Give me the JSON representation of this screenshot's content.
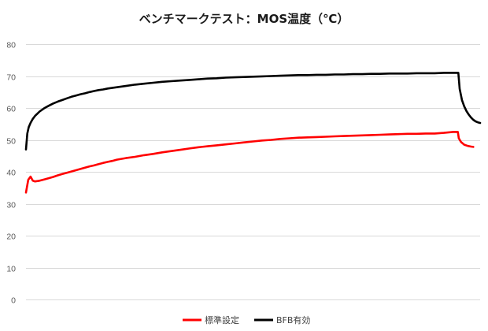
{
  "chart_data": {
    "type": "line",
    "title": "ベンチマークテスト：MOS温度（℃）",
    "xlabel": "",
    "ylabel": "",
    "ylim": [
      0,
      80
    ],
    "yticks": [
      "0",
      "10",
      "20",
      "30",
      "40",
      "50",
      "60",
      "70",
      "80"
    ],
    "grid": true,
    "legend_position": "bottom",
    "x_max": 100,
    "series": [
      {
        "name": "標準設定",
        "color": "#ff0000",
        "points": [
          [
            0,
            33.5
          ],
          [
            0.5,
            37.5
          ],
          [
            1,
            38.5
          ],
          [
            1.5,
            37.2
          ],
          [
            2,
            37
          ],
          [
            3,
            37.2
          ],
          [
            4,
            37.6
          ],
          [
            5,
            38
          ],
          [
            6,
            38.4
          ],
          [
            7,
            38.9
          ],
          [
            8,
            39.3
          ],
          [
            9,
            39.7
          ],
          [
            10,
            40.1
          ],
          [
            11,
            40.5
          ],
          [
            12,
            40.9
          ],
          [
            13,
            41.3
          ],
          [
            14,
            41.7
          ],
          [
            15,
            42
          ],
          [
            16,
            42.4
          ],
          [
            17,
            42.8
          ],
          [
            18,
            43.1
          ],
          [
            19,
            43.4
          ],
          [
            20,
            43.8
          ],
          [
            22,
            44.3
          ],
          [
            24,
            44.7
          ],
          [
            26,
            45.2
          ],
          [
            28,
            45.6
          ],
          [
            30,
            46.1
          ],
          [
            32,
            46.5
          ],
          [
            34,
            46.9
          ],
          [
            36,
            47.3
          ],
          [
            38,
            47.7
          ],
          [
            40,
            48
          ],
          [
            42,
            48.3
          ],
          [
            44,
            48.6
          ],
          [
            46,
            48.9
          ],
          [
            48,
            49.2
          ],
          [
            50,
            49.5
          ],
          [
            52,
            49.8
          ],
          [
            54,
            50
          ],
          [
            56,
            50.3
          ],
          [
            58,
            50.5
          ],
          [
            60,
            50.7
          ],
          [
            62,
            50.8
          ],
          [
            64,
            50.9
          ],
          [
            66,
            51
          ],
          [
            68,
            51.1
          ],
          [
            70,
            51.2
          ],
          [
            72,
            51.3
          ],
          [
            74,
            51.4
          ],
          [
            76,
            51.5
          ],
          [
            78,
            51.6
          ],
          [
            80,
            51.7
          ],
          [
            82,
            51.8
          ],
          [
            84,
            51.9
          ],
          [
            86,
            51.9
          ],
          [
            88,
            52
          ],
          [
            90,
            52
          ],
          [
            92,
            52.2
          ],
          [
            94,
            52.5
          ],
          [
            95.1,
            52.5
          ],
          [
            95.3,
            50.5
          ],
          [
            95.8,
            49.3
          ],
          [
            96.5,
            48.5
          ],
          [
            97.3,
            48.1
          ],
          [
            98,
            47.9
          ],
          [
            98.5,
            47.8
          ]
        ]
      },
      {
        "name": "BFB有効",
        "color": "#000000",
        "points": [
          [
            0,
            47
          ],
          [
            0.3,
            52
          ],
          [
            0.6,
            54
          ],
          [
            1,
            55.3
          ],
          [
            1.5,
            56.6
          ],
          [
            2,
            57.5
          ],
          [
            2.5,
            58.2
          ],
          [
            3,
            58.9
          ],
          [
            4,
            59.9
          ],
          [
            5,
            60.7
          ],
          [
            6,
            61.4
          ],
          [
            7,
            62
          ],
          [
            8,
            62.5
          ],
          [
            9,
            63
          ],
          [
            10,
            63.5
          ],
          [
            11,
            63.9
          ],
          [
            12,
            64.3
          ],
          [
            13,
            64.6
          ],
          [
            14,
            65
          ],
          [
            15,
            65.3
          ],
          [
            16,
            65.6
          ],
          [
            17,
            65.8
          ],
          [
            18,
            66.1
          ],
          [
            20,
            66.5
          ],
          [
            22,
            66.9
          ],
          [
            24,
            67.3
          ],
          [
            26,
            67.6
          ],
          [
            28,
            67.9
          ],
          [
            30,
            68.2
          ],
          [
            32,
            68.4
          ],
          [
            34,
            68.6
          ],
          [
            36,
            68.8
          ],
          [
            38,
            69
          ],
          [
            40,
            69.2
          ],
          [
            42,
            69.3
          ],
          [
            44,
            69.5
          ],
          [
            46,
            69.6
          ],
          [
            48,
            69.7
          ],
          [
            50,
            69.8
          ],
          [
            52,
            69.9
          ],
          [
            54,
            70
          ],
          [
            56,
            70.1
          ],
          [
            58,
            70.2
          ],
          [
            60,
            70.3
          ],
          [
            62,
            70.3
          ],
          [
            64,
            70.4
          ],
          [
            66,
            70.4
          ],
          [
            68,
            70.5
          ],
          [
            70,
            70.5
          ],
          [
            72,
            70.6
          ],
          [
            74,
            70.6
          ],
          [
            76,
            70.7
          ],
          [
            78,
            70.7
          ],
          [
            80,
            70.8
          ],
          [
            82,
            70.8
          ],
          [
            84,
            70.8
          ],
          [
            86,
            70.9
          ],
          [
            88,
            70.9
          ],
          [
            90,
            70.9
          ],
          [
            92,
            71
          ],
          [
            94,
            71
          ],
          [
            95.2,
            71
          ],
          [
            95.5,
            66
          ],
          [
            96,
            62.5
          ],
          [
            96.5,
            60.5
          ],
          [
            97,
            59
          ],
          [
            97.5,
            57.9
          ],
          [
            98,
            57
          ],
          [
            98.5,
            56.3
          ],
          [
            99,
            55.8
          ],
          [
            99.5,
            55.5
          ],
          [
            100,
            55.3
          ]
        ]
      }
    ]
  }
}
